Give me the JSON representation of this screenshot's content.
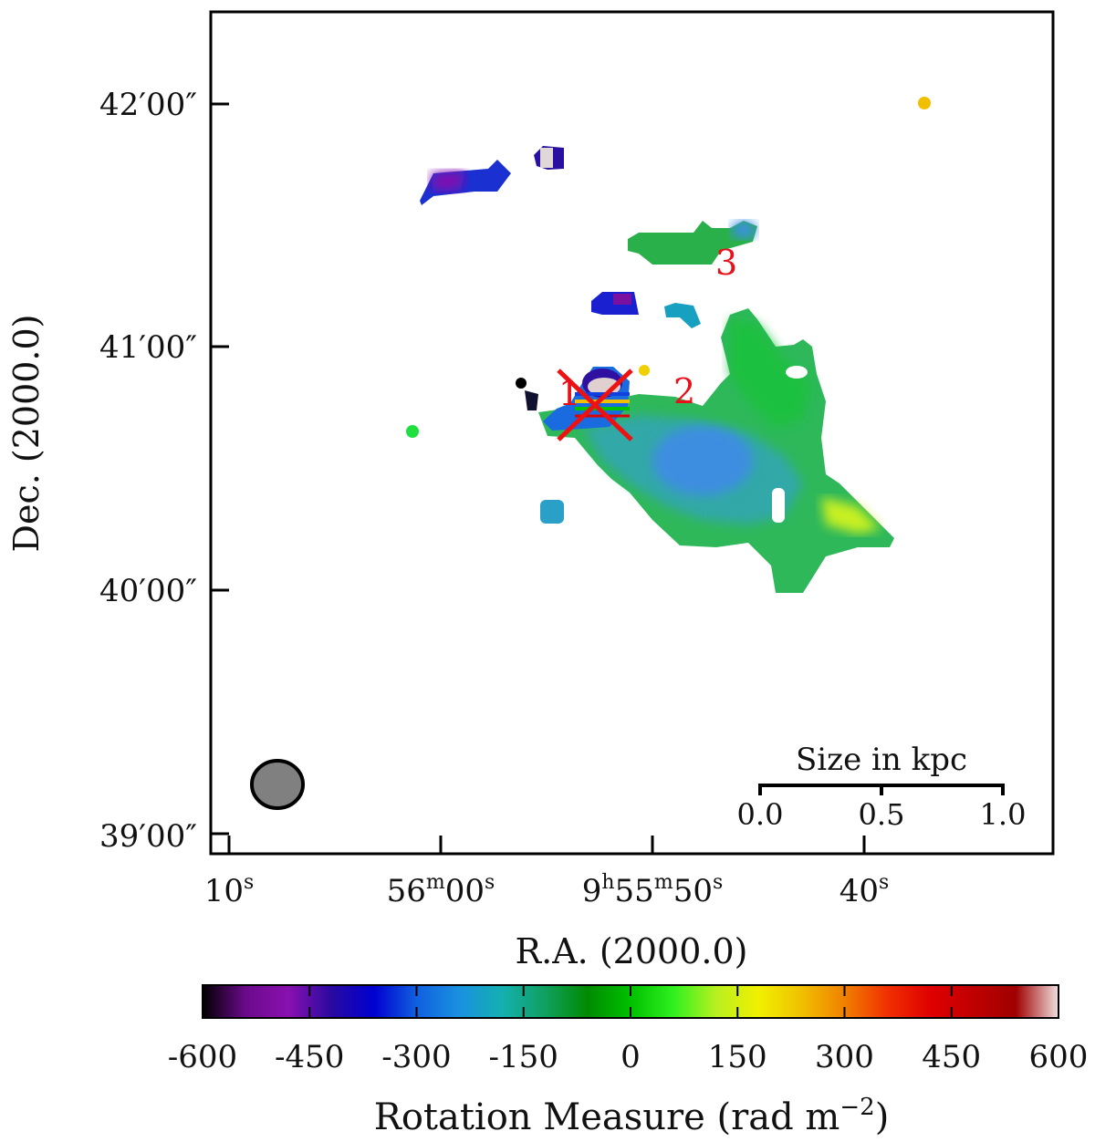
{
  "chart_data": {
    "type": "heatmap",
    "title": "",
    "xlabel": "R.A. (2000.0)",
    "ylabel": "Dec. (2000.0)",
    "x_ticks": [
      {
        "main": "10",
        "sup": "s"
      },
      {
        "main": "56",
        "sup": "m",
        "main2": "00",
        "sup2": "s"
      },
      {
        "main": "9",
        "sup": "h",
        "main2": "55",
        "sup2": "m",
        "main3": "50",
        "sup3": "s"
      },
      {
        "main": "40",
        "sup": "s"
      }
    ],
    "y_ticks": [
      "42′00″",
      "41′00″",
      "40′00″",
      "39′00″"
    ],
    "colorbar": {
      "label": "Rotation Measure (rad m",
      "label_sup": "−2",
      "label_end": ")",
      "range": [
        -600,
        600
      ],
      "ticks": [
        "-600",
        "-450",
        "-300",
        "-150",
        "0",
        "150",
        "300",
        "450",
        "600"
      ],
      "colors": [
        "#000000",
        "#6a0a8a",
        "#8a10b0",
        "#2a0aa0",
        "#0000d0",
        "#1060e0",
        "#1a90e0",
        "#14b0b0",
        "#10a060",
        "#008a00",
        "#00c000",
        "#30f020",
        "#b8f020",
        "#f0f000",
        "#f0c000",
        "#f08000",
        "#f03000",
        "#e00000",
        "#c00000",
        "#a00000",
        "#f0e0e0"
      ]
    },
    "markers": [
      {
        "label": "1",
        "symbol": "x"
      },
      {
        "label": "2"
      },
      {
        "label": "3"
      }
    ],
    "scale_bar": {
      "title": "Size in kpc",
      "ticks": [
        "0.0",
        "0.5",
        "1.0"
      ]
    },
    "beam": {
      "fill": "#808080"
    }
  }
}
